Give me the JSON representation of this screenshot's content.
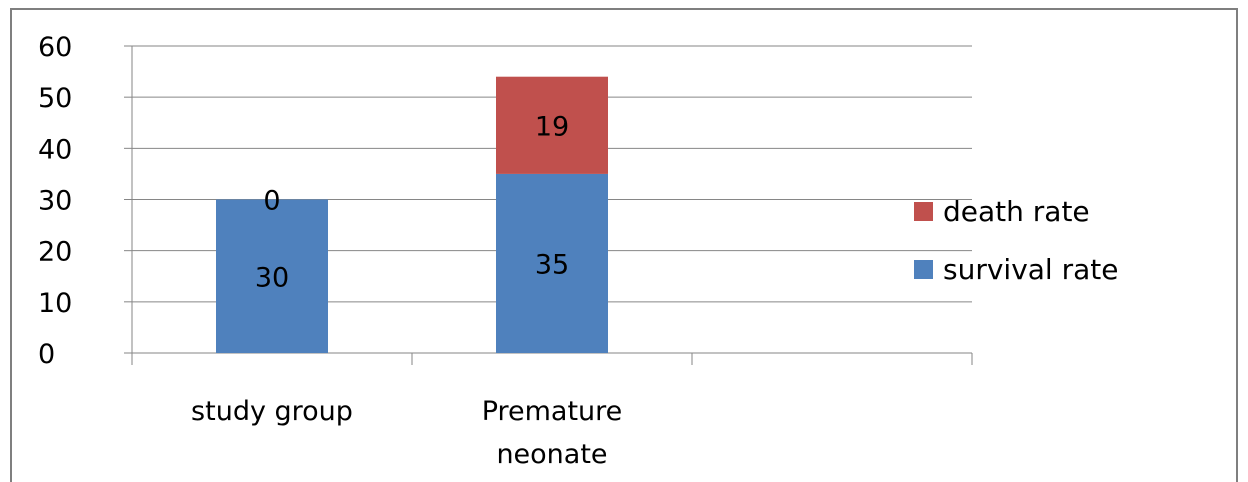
{
  "chart_data": {
    "type": "bar",
    "stacked": true,
    "categories": [
      "study group",
      "Premature neonate",
      ""
    ],
    "series": [
      {
        "name": "survival rate",
        "values": [
          30,
          35,
          null
        ],
        "color": "#4f81bd"
      },
      {
        "name": "death rate",
        "values": [
          0,
          19,
          null
        ],
        "color": "#c0504d"
      }
    ],
    "data_labels": true,
    "ylim": [
      0,
      60
    ],
    "yticks": [
      "0",
      "10",
      "20",
      "30",
      "40",
      "50",
      "60"
    ],
    "grid": true,
    "legend_position": "right",
    "legend_order": [
      "death rate",
      "survival rate"
    ],
    "title": "",
    "xlabel": "",
    "ylabel": ""
  }
}
